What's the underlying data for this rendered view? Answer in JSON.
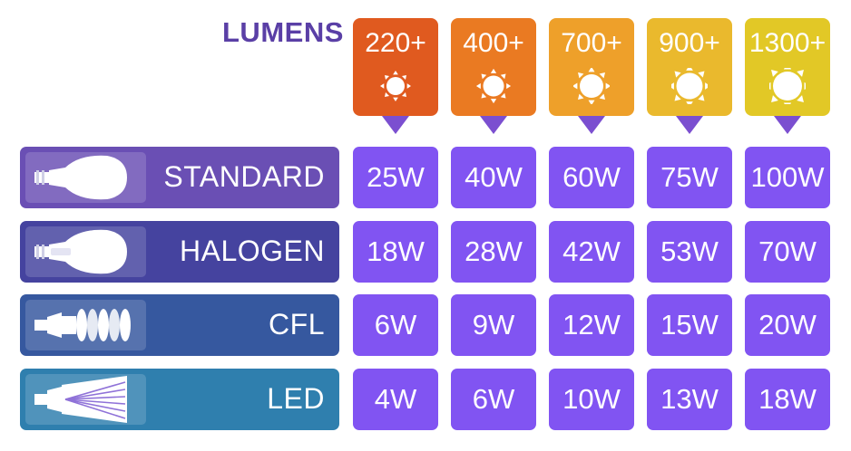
{
  "chart_data": {
    "type": "table",
    "title": "LUMENS",
    "columns": [
      "220+",
      "400+",
      "700+",
      "900+",
      "1300+"
    ],
    "column_colors": [
      "#e05a1f",
      "#ea7a22",
      "#eea02a",
      "#eab92d",
      "#e2c826"
    ],
    "rows": [
      {
        "type": "STANDARD",
        "icon": "incandescent-bulb-icon",
        "color": "#6a4fb4",
        "values": [
          "25W",
          "40W",
          "60W",
          "75W",
          "100W"
        ]
      },
      {
        "type": "HALOGEN",
        "icon": "halogen-bulb-icon",
        "color": "#45439f",
        "values": [
          "18W",
          "28W",
          "42W",
          "53W",
          "70W"
        ]
      },
      {
        "type": "CFL",
        "icon": "cfl-bulb-icon",
        "color": "#36589f",
        "values": [
          "6W",
          "9W",
          "12W",
          "15W",
          "20W"
        ]
      },
      {
        "type": "LED",
        "icon": "led-bulb-icon",
        "color": "#2f7fae",
        "values": [
          "4W",
          "6W",
          "10W",
          "13W",
          "18W"
        ]
      }
    ]
  }
}
